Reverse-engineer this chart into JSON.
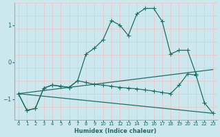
{
  "xlabel": "Humidex (Indice chaleur)",
  "xlim": [
    -0.5,
    23.5
  ],
  "ylim": [
    -1.55,
    1.6
  ],
  "bg_color": "#cce8ee",
  "grid_color_v": "#e8c8c8",
  "grid_color_h": "#e8c8c8",
  "line_color": "#1a6e64",
  "xticks": [
    0,
    1,
    2,
    3,
    4,
    5,
    6,
    7,
    8,
    9,
    10,
    11,
    12,
    13,
    14,
    15,
    16,
    17,
    18,
    19,
    20,
    21,
    22,
    23
  ],
  "yticks": [
    -1,
    0,
    1
  ],
  "series": [
    {
      "x": [
        0,
        1,
        2,
        3,
        4,
        5,
        6,
        7,
        8,
        9,
        10,
        11,
        12,
        13,
        14,
        15,
        16,
        17,
        18,
        19,
        20,
        21
      ],
      "y": [
        -0.85,
        -1.3,
        -1.25,
        -0.7,
        -0.62,
        -0.65,
        -0.68,
        -0.5,
        0.22,
        0.38,
        0.6,
        1.12,
        1.0,
        0.72,
        1.3,
        1.45,
        1.45,
        1.1,
        0.22,
        0.32,
        0.32,
        -0.32
      ],
      "marker": true
    },
    {
      "x": [
        0,
        1,
        2,
        3,
        4,
        5,
        6,
        7,
        8,
        9,
        10,
        11,
        12,
        13,
        14,
        15,
        16,
        17,
        18,
        19,
        20,
        21,
        22,
        23
      ],
      "y": [
        -0.85,
        -1.3,
        -1.25,
        -0.7,
        -0.62,
        -0.65,
        -0.68,
        -0.5,
        -0.55,
        -0.6,
        -0.62,
        -0.65,
        -0.68,
        -0.7,
        -0.72,
        -0.75,
        -0.78,
        -0.82,
        -0.85,
        -0.62,
        -0.32,
        -0.35,
        -1.1,
        -1.38
      ],
      "marker": true
    },
    {
      "x": [
        0,
        23
      ],
      "y": [
        -0.85,
        -0.2
      ],
      "marker": false
    },
    {
      "x": [
        0,
        23
      ],
      "y": [
        -0.85,
        -1.38
      ],
      "marker": false
    }
  ]
}
